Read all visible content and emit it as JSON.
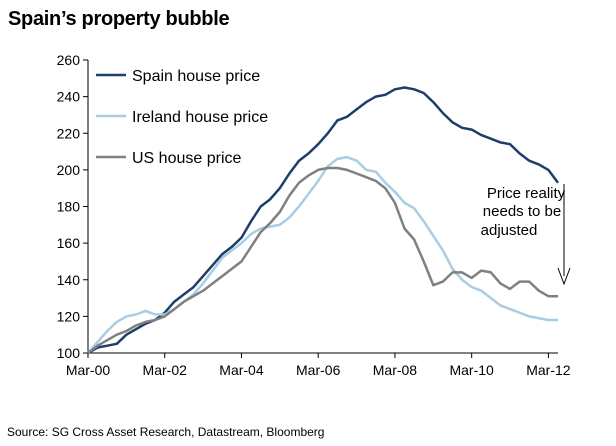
{
  "title": "Spain’s property bubble",
  "source": "Source: SG Cross Asset Research, Datastream, Bloomberg",
  "annotation": {
    "lines": [
      "Price reality",
      "needs to be",
      "adjusted"
    ]
  },
  "chart_data": {
    "type": "line",
    "ylim": [
      100,
      260
    ],
    "yticks": [
      100,
      120,
      140,
      160,
      180,
      200,
      220,
      240,
      260
    ],
    "xlim": [
      2000.0,
      2012.25
    ],
    "xticks": [
      {
        "x": 2000.0,
        "label": "Mar-00"
      },
      {
        "x": 2002.0,
        "label": "Mar-02"
      },
      {
        "x": 2004.0,
        "label": "Mar-04"
      },
      {
        "x": 2006.0,
        "label": "Mar-06"
      },
      {
        "x": 2008.0,
        "label": "Mar-08"
      },
      {
        "x": 2010.0,
        "label": "Mar-10"
      },
      {
        "x": 2012.0,
        "label": "Mar-12"
      }
    ],
    "legend_position": "top-left",
    "grid": false,
    "series": [
      {
        "name": "Spain house price",
        "color": "#1f3d6b",
        "points": [
          [
            2000.0,
            100
          ],
          [
            2000.25,
            103
          ],
          [
            2000.5,
            104
          ],
          [
            2000.75,
            105
          ],
          [
            2001.0,
            110
          ],
          [
            2001.25,
            113
          ],
          [
            2001.5,
            116
          ],
          [
            2001.75,
            118
          ],
          [
            2002.0,
            122
          ],
          [
            2002.25,
            128
          ],
          [
            2002.5,
            132
          ],
          [
            2002.75,
            136
          ],
          [
            2003.0,
            142
          ],
          [
            2003.25,
            148
          ],
          [
            2003.5,
            154
          ],
          [
            2003.75,
            158
          ],
          [
            2004.0,
            163
          ],
          [
            2004.25,
            172
          ],
          [
            2004.5,
            180
          ],
          [
            2004.75,
            184
          ],
          [
            2005.0,
            190
          ],
          [
            2005.25,
            198
          ],
          [
            2005.5,
            205
          ],
          [
            2005.75,
            209
          ],
          [
            2006.0,
            214
          ],
          [
            2006.25,
            220
          ],
          [
            2006.5,
            227
          ],
          [
            2006.75,
            229
          ],
          [
            2007.0,
            233
          ],
          [
            2007.25,
            237
          ],
          [
            2007.5,
            240
          ],
          [
            2007.75,
            241
          ],
          [
            2008.0,
            244
          ],
          [
            2008.25,
            245
          ],
          [
            2008.5,
            244
          ],
          [
            2008.75,
            242
          ],
          [
            2009.0,
            237
          ],
          [
            2009.25,
            231
          ],
          [
            2009.5,
            226
          ],
          [
            2009.75,
            223
          ],
          [
            2010.0,
            222
          ],
          [
            2010.25,
            219
          ],
          [
            2010.5,
            217
          ],
          [
            2010.75,
            215
          ],
          [
            2011.0,
            214
          ],
          [
            2011.25,
            209
          ],
          [
            2011.5,
            205
          ],
          [
            2011.75,
            203
          ],
          [
            2012.0,
            200
          ],
          [
            2012.25,
            193
          ]
        ]
      },
      {
        "name": "Ireland house price",
        "color": "#a9cde3",
        "points": [
          [
            2000.0,
            100
          ],
          [
            2000.25,
            106
          ],
          [
            2000.5,
            112
          ],
          [
            2000.75,
            117
          ],
          [
            2001.0,
            120
          ],
          [
            2001.25,
            121
          ],
          [
            2001.5,
            123
          ],
          [
            2001.75,
            121
          ],
          [
            2002.0,
            121
          ],
          [
            2002.25,
            124
          ],
          [
            2002.5,
            128
          ],
          [
            2002.75,
            132
          ],
          [
            2003.0,
            138
          ],
          [
            2003.25,
            145
          ],
          [
            2003.5,
            152
          ],
          [
            2003.75,
            156
          ],
          [
            2004.0,
            160
          ],
          [
            2004.25,
            165
          ],
          [
            2004.5,
            168
          ],
          [
            2004.75,
            169
          ],
          [
            2005.0,
            170
          ],
          [
            2005.25,
            174
          ],
          [
            2005.5,
            180
          ],
          [
            2005.75,
            187
          ],
          [
            2006.0,
            194
          ],
          [
            2006.25,
            202
          ],
          [
            2006.5,
            206
          ],
          [
            2006.75,
            207
          ],
          [
            2007.0,
            205
          ],
          [
            2007.25,
            200
          ],
          [
            2007.5,
            199
          ],
          [
            2007.75,
            193
          ],
          [
            2008.0,
            188
          ],
          [
            2008.25,
            182
          ],
          [
            2008.5,
            179
          ],
          [
            2008.75,
            172
          ],
          [
            2009.0,
            164
          ],
          [
            2009.25,
            156
          ],
          [
            2009.5,
            146
          ],
          [
            2009.75,
            140
          ],
          [
            2010.0,
            136
          ],
          [
            2010.25,
            134
          ],
          [
            2010.5,
            130
          ],
          [
            2010.75,
            126
          ],
          [
            2011.0,
            124
          ],
          [
            2011.25,
            122
          ],
          [
            2011.5,
            120
          ],
          [
            2011.75,
            119
          ],
          [
            2012.0,
            118
          ],
          [
            2012.25,
            118
          ]
        ]
      },
      {
        "name": "US house price",
        "color": "#808080",
        "points": [
          [
            2000.0,
            100
          ],
          [
            2000.25,
            104
          ],
          [
            2000.5,
            107
          ],
          [
            2000.75,
            110
          ],
          [
            2001.0,
            112
          ],
          [
            2001.25,
            115
          ],
          [
            2001.5,
            117
          ],
          [
            2001.75,
            118
          ],
          [
            2002.0,
            120
          ],
          [
            2002.25,
            124
          ],
          [
            2002.5,
            128
          ],
          [
            2002.75,
            131
          ],
          [
            2003.0,
            134
          ],
          [
            2003.25,
            138
          ],
          [
            2003.5,
            142
          ],
          [
            2003.75,
            146
          ],
          [
            2004.0,
            150
          ],
          [
            2004.25,
            158
          ],
          [
            2004.5,
            166
          ],
          [
            2004.75,
            171
          ],
          [
            2005.0,
            177
          ],
          [
            2005.25,
            186
          ],
          [
            2005.5,
            193
          ],
          [
            2005.75,
            197
          ],
          [
            2006.0,
            200
          ],
          [
            2006.25,
            201
          ],
          [
            2006.5,
            201
          ],
          [
            2006.75,
            200
          ],
          [
            2007.0,
            198
          ],
          [
            2007.25,
            196
          ],
          [
            2007.5,
            194
          ],
          [
            2007.75,
            190
          ],
          [
            2008.0,
            182
          ],
          [
            2008.25,
            168
          ],
          [
            2008.5,
            162
          ],
          [
            2008.75,
            150
          ],
          [
            2009.0,
            137
          ],
          [
            2009.25,
            139
          ],
          [
            2009.5,
            144
          ],
          [
            2009.75,
            144
          ],
          [
            2010.0,
            141
          ],
          [
            2010.25,
            145
          ],
          [
            2010.5,
            144
          ],
          [
            2010.75,
            138
          ],
          [
            2011.0,
            135
          ],
          [
            2011.25,
            139
          ],
          [
            2011.5,
            139
          ],
          [
            2011.75,
            134
          ],
          [
            2012.0,
            131
          ],
          [
            2012.25,
            131
          ]
        ]
      }
    ]
  }
}
